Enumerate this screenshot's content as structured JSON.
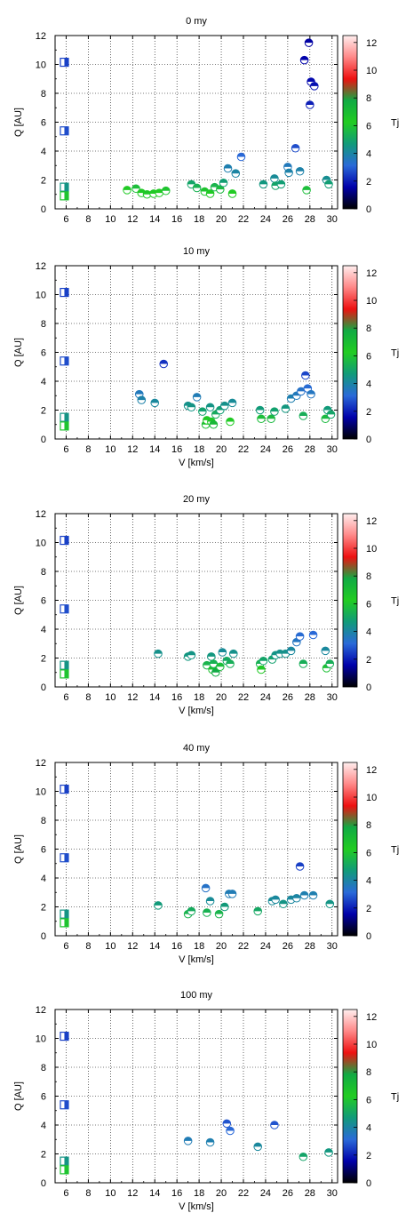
{
  "colors": {
    "colorbar_stops": [
      "#000000",
      "#0000aa",
      "#2a6ad8",
      "#119a7a",
      "#22cc22",
      "#11aa44",
      "#ee1111",
      "#ff8888",
      "#ffeeee"
    ],
    "text": "#000000",
    "grid": "#000000"
  },
  "chart_data": [
    {
      "type": "scatter",
      "title": "0 my",
      "xlabel": "",
      "ylabel": "Q [AU]",
      "colorbar_label": "Tj",
      "xlim": [
        5,
        30.5
      ],
      "ylim": [
        0,
        12
      ],
      "xticks": [
        "6",
        "8",
        "10",
        "12",
        "14",
        "16",
        "18",
        "20",
        "22",
        "24",
        "26",
        "28",
        "30"
      ],
      "yticks": [
        "0",
        "2",
        "4",
        "6",
        "8",
        "10",
        "12"
      ],
      "cticks": [
        "0",
        "2",
        "4",
        "6",
        "8",
        "10",
        "12"
      ],
      "clim": [
        0,
        12.5
      ],
      "grid": true,
      "reference_boxes": [
        {
          "x": 6,
          "y": 10.15,
          "tj": 2.5
        },
        {
          "x": 6,
          "y": 5.4,
          "tj": 2.7
        },
        {
          "x": 6,
          "y": 1.5,
          "tj": 4.5
        },
        {
          "x": 6,
          "y": 0.9,
          "tj": 6.0
        }
      ],
      "points": [
        {
          "x": 11.5,
          "y": 1.3,
          "tj": 6.2
        },
        {
          "x": 12.3,
          "y": 1.4,
          "tj": 5.8
        },
        {
          "x": 12.8,
          "y": 1.1,
          "tj": 6.4
        },
        {
          "x": 13.3,
          "y": 1.0,
          "tj": 6.5
        },
        {
          "x": 13.9,
          "y": 1.05,
          "tj": 6.4
        },
        {
          "x": 14.4,
          "y": 1.1,
          "tj": 6.3
        },
        {
          "x": 15.0,
          "y": 1.25,
          "tj": 6.0
        },
        {
          "x": 17.3,
          "y": 1.7,
          "tj": 5.0
        },
        {
          "x": 17.8,
          "y": 1.45,
          "tj": 5.4
        },
        {
          "x": 18.5,
          "y": 1.2,
          "tj": 6.0
        },
        {
          "x": 19.0,
          "y": 1.05,
          "tj": 6.4
        },
        {
          "x": 19.4,
          "y": 1.5,
          "tj": 5.5
        },
        {
          "x": 19.9,
          "y": 1.35,
          "tj": 5.7
        },
        {
          "x": 20.2,
          "y": 1.8,
          "tj": 4.8
        },
        {
          "x": 20.6,
          "y": 2.8,
          "tj": 3.8
        },
        {
          "x": 21.0,
          "y": 1.05,
          "tj": 6.3
        },
        {
          "x": 21.3,
          "y": 2.45,
          "tj": 4.0
        },
        {
          "x": 21.8,
          "y": 3.6,
          "tj": 3.1
        },
        {
          "x": 23.8,
          "y": 1.7,
          "tj": 4.6
        },
        {
          "x": 24.8,
          "y": 2.1,
          "tj": 4.2
        },
        {
          "x": 24.9,
          "y": 1.6,
          "tj": 5.0
        },
        {
          "x": 25.4,
          "y": 1.7,
          "tj": 4.8
        },
        {
          "x": 26.0,
          "y": 2.9,
          "tj": 3.6
        },
        {
          "x": 26.1,
          "y": 2.5,
          "tj": 3.9
        },
        {
          "x": 26.7,
          "y": 4.2,
          "tj": 2.7
        },
        {
          "x": 27.1,
          "y": 2.6,
          "tj": 3.9
        },
        {
          "x": 27.5,
          "y": 10.3,
          "tj": 1.6
        },
        {
          "x": 27.7,
          "y": 1.3,
          "tj": 5.8
        },
        {
          "x": 27.9,
          "y": 11.5,
          "tj": 1.5
        },
        {
          "x": 28.0,
          "y": 7.2,
          "tj": 2.0
        },
        {
          "x": 28.1,
          "y": 8.8,
          "tj": 1.7
        },
        {
          "x": 28.4,
          "y": 8.5,
          "tj": 1.8
        },
        {
          "x": 29.5,
          "y": 2.0,
          "tj": 4.3
        },
        {
          "x": 29.7,
          "y": 1.7,
          "tj": 4.8
        }
      ]
    },
    {
      "type": "scatter",
      "title": "10 my",
      "xlabel": "V [km/s]",
      "ylabel": "Q [AU]",
      "colorbar_label": "Tj",
      "xlim": [
        5,
        30.5
      ],
      "ylim": [
        0,
        12
      ],
      "xticks": [
        "6",
        "8",
        "10",
        "12",
        "14",
        "16",
        "18",
        "20",
        "22",
        "24",
        "26",
        "28",
        "30"
      ],
      "yticks": [
        "0",
        "2",
        "4",
        "6",
        "8",
        "10",
        "12"
      ],
      "cticks": [
        "0",
        "2",
        "4",
        "6",
        "8",
        "10",
        "12"
      ],
      "clim": [
        0,
        12.5
      ],
      "grid": true,
      "reference_boxes": [
        {
          "x": 6,
          "y": 10.15,
          "tj": 2.5
        },
        {
          "x": 6,
          "y": 5.4,
          "tj": 2.7
        },
        {
          "x": 6,
          "y": 1.5,
          "tj": 4.5
        },
        {
          "x": 6,
          "y": 0.9,
          "tj": 6.0
        }
      ],
      "points": [
        {
          "x": 12.6,
          "y": 3.1,
          "tj": 3.6
        },
        {
          "x": 12.8,
          "y": 2.7,
          "tj": 3.9
        },
        {
          "x": 14.0,
          "y": 2.5,
          "tj": 4.1
        },
        {
          "x": 14.8,
          "y": 5.2,
          "tj": 2.3
        },
        {
          "x": 17.0,
          "y": 2.3,
          "tj": 4.4
        },
        {
          "x": 17.3,
          "y": 2.2,
          "tj": 4.5
        },
        {
          "x": 17.8,
          "y": 2.9,
          "tj": 3.7
        },
        {
          "x": 18.3,
          "y": 1.9,
          "tj": 4.9
        },
        {
          "x": 18.6,
          "y": 1.0,
          "tj": 7.0
        },
        {
          "x": 18.7,
          "y": 1.3,
          "tj": 6.2
        },
        {
          "x": 19.0,
          "y": 2.2,
          "tj": 4.5
        },
        {
          "x": 19.1,
          "y": 1.2,
          "tj": 6.5
        },
        {
          "x": 19.3,
          "y": 1.0,
          "tj": 7.2
        },
        {
          "x": 19.5,
          "y": 1.7,
          "tj": 5.2
        },
        {
          "x": 19.9,
          "y": 2.0,
          "tj": 4.8
        },
        {
          "x": 20.3,
          "y": 2.3,
          "tj": 4.4
        },
        {
          "x": 20.8,
          "y": 1.2,
          "tj": 6.2
        },
        {
          "x": 21.0,
          "y": 2.5,
          "tj": 4.2
        },
        {
          "x": 23.5,
          "y": 2.0,
          "tj": 4.7
        },
        {
          "x": 23.6,
          "y": 1.4,
          "tj": 5.8
        },
        {
          "x": 24.5,
          "y": 1.4,
          "tj": 5.7
        },
        {
          "x": 24.8,
          "y": 1.9,
          "tj": 4.9
        },
        {
          "x": 25.8,
          "y": 2.1,
          "tj": 4.6
        },
        {
          "x": 26.3,
          "y": 2.8,
          "tj": 3.8
        },
        {
          "x": 26.8,
          "y": 3.0,
          "tj": 3.6
        },
        {
          "x": 27.2,
          "y": 3.3,
          "tj": 3.4
        },
        {
          "x": 27.4,
          "y": 1.6,
          "tj": 5.3
        },
        {
          "x": 27.6,
          "y": 4.4,
          "tj": 2.6
        },
        {
          "x": 27.8,
          "y": 3.5,
          "tj": 3.2
        },
        {
          "x": 28.1,
          "y": 3.1,
          "tj": 3.5
        },
        {
          "x": 29.4,
          "y": 1.4,
          "tj": 5.7
        },
        {
          "x": 29.6,
          "y": 2.0,
          "tj": 4.7
        },
        {
          "x": 29.9,
          "y": 1.7,
          "tj": 5.0
        }
      ]
    },
    {
      "type": "scatter",
      "title": "20 my",
      "xlabel": "V [km/s]",
      "ylabel": "Q [AU]",
      "colorbar_label": "Tj",
      "xlim": [
        5,
        30.5
      ],
      "ylim": [
        0,
        12
      ],
      "xticks": [
        "6",
        "8",
        "10",
        "12",
        "14",
        "16",
        "18",
        "20",
        "22",
        "24",
        "26",
        "28",
        "30"
      ],
      "yticks": [
        "0",
        "2",
        "4",
        "6",
        "8",
        "10",
        "12"
      ],
      "cticks": [
        "0",
        "2",
        "4",
        "6",
        "8",
        "10",
        "12"
      ],
      "clim": [
        0,
        12.5
      ],
      "grid": true,
      "reference_boxes": [
        {
          "x": 6,
          "y": 10.15,
          "tj": 2.5
        },
        {
          "x": 6,
          "y": 5.4,
          "tj": 2.7
        },
        {
          "x": 6,
          "y": 1.5,
          "tj": 4.5
        },
        {
          "x": 6,
          "y": 0.9,
          "tj": 6.0
        }
      ],
      "points": [
        {
          "x": 14.3,
          "y": 2.3,
          "tj": 4.4
        },
        {
          "x": 17.0,
          "y": 2.1,
          "tj": 4.6
        },
        {
          "x": 17.3,
          "y": 2.2,
          "tj": 4.5
        },
        {
          "x": 18.7,
          "y": 1.5,
          "tj": 5.5
        },
        {
          "x": 19.1,
          "y": 2.1,
          "tj": 4.6
        },
        {
          "x": 19.2,
          "y": 1.2,
          "tj": 6.8
        },
        {
          "x": 19.3,
          "y": 1.6,
          "tj": 5.4
        },
        {
          "x": 19.5,
          "y": 1.0,
          "tj": 7.8
        },
        {
          "x": 19.9,
          "y": 1.4,
          "tj": 5.8
        },
        {
          "x": 20.1,
          "y": 2.4,
          "tj": 4.2
        },
        {
          "x": 20.5,
          "y": 1.8,
          "tj": 5.1
        },
        {
          "x": 20.8,
          "y": 1.6,
          "tj": 5.3
        },
        {
          "x": 21.1,
          "y": 2.3,
          "tj": 4.4
        },
        {
          "x": 23.5,
          "y": 1.6,
          "tj": 5.4
        },
        {
          "x": 23.6,
          "y": 1.2,
          "tj": 6.2
        },
        {
          "x": 23.8,
          "y": 1.8,
          "tj": 5.0
        },
        {
          "x": 24.6,
          "y": 1.9,
          "tj": 4.9
        },
        {
          "x": 24.9,
          "y": 2.2,
          "tj": 4.5
        },
        {
          "x": 25.3,
          "y": 2.3,
          "tj": 4.4
        },
        {
          "x": 25.8,
          "y": 2.3,
          "tj": 4.4
        },
        {
          "x": 26.3,
          "y": 2.5,
          "tj": 4.1
        },
        {
          "x": 26.8,
          "y": 3.1,
          "tj": 3.5
        },
        {
          "x": 27.1,
          "y": 3.5,
          "tj": 3.2
        },
        {
          "x": 27.4,
          "y": 1.6,
          "tj": 5.3
        },
        {
          "x": 28.3,
          "y": 3.6,
          "tj": 3.1
        },
        {
          "x": 29.4,
          "y": 2.5,
          "tj": 4.1
        },
        {
          "x": 29.5,
          "y": 1.3,
          "tj": 5.9
        },
        {
          "x": 29.8,
          "y": 1.6,
          "tj": 5.3
        }
      ]
    },
    {
      "type": "scatter",
      "title": "40 my",
      "xlabel": "V [km/s]",
      "ylabel": "Q [AU]",
      "colorbar_label": "Tj",
      "xlim": [
        5,
        30.5
      ],
      "ylim": [
        0,
        12
      ],
      "xticks": [
        "6",
        "8",
        "10",
        "12",
        "14",
        "16",
        "18",
        "20",
        "22",
        "24",
        "26",
        "28",
        "30"
      ],
      "yticks": [
        "0",
        "2",
        "4",
        "6",
        "8",
        "10",
        "12"
      ],
      "cticks": [
        "0",
        "2",
        "4",
        "6",
        "8",
        "10",
        "12"
      ],
      "clim": [
        0,
        12.5
      ],
      "grid": true,
      "reference_boxes": [
        {
          "x": 6,
          "y": 10.15,
          "tj": 2.5
        },
        {
          "x": 6,
          "y": 5.4,
          "tj": 2.7
        },
        {
          "x": 6,
          "y": 1.5,
          "tj": 4.5
        },
        {
          "x": 6,
          "y": 0.9,
          "tj": 6.0
        }
      ],
      "points": [
        {
          "x": 14.3,
          "y": 2.1,
          "tj": 4.7
        },
        {
          "x": 17.0,
          "y": 1.5,
          "tj": 5.5
        },
        {
          "x": 17.3,
          "y": 1.7,
          "tj": 5.2
        },
        {
          "x": 18.6,
          "y": 3.3,
          "tj": 3.4
        },
        {
          "x": 18.7,
          "y": 1.6,
          "tj": 5.4
        },
        {
          "x": 19.0,
          "y": 2.4,
          "tj": 4.2
        },
        {
          "x": 19.8,
          "y": 1.5,
          "tj": 5.5
        },
        {
          "x": 20.3,
          "y": 2.0,
          "tj": 4.7
        },
        {
          "x": 20.7,
          "y": 2.9,
          "tj": 3.7
        },
        {
          "x": 21.0,
          "y": 2.9,
          "tj": 3.7
        },
        {
          "x": 23.3,
          "y": 1.7,
          "tj": 5.1
        },
        {
          "x": 24.6,
          "y": 2.4,
          "tj": 4.2
        },
        {
          "x": 24.9,
          "y": 2.5,
          "tj": 4.1
        },
        {
          "x": 25.6,
          "y": 2.2,
          "tj": 4.5
        },
        {
          "x": 26.3,
          "y": 2.5,
          "tj": 4.1
        },
        {
          "x": 26.8,
          "y": 2.6,
          "tj": 4.0
        },
        {
          "x": 27.1,
          "y": 4.8,
          "tj": 2.5
        },
        {
          "x": 27.5,
          "y": 2.8,
          "tj": 3.8
        },
        {
          "x": 28.3,
          "y": 2.8,
          "tj": 3.8
        },
        {
          "x": 29.8,
          "y": 2.2,
          "tj": 4.5
        }
      ]
    },
    {
      "type": "scatter",
      "title": "100 my",
      "xlabel": "V [km/s]",
      "ylabel": "Q [AU]",
      "colorbar_label": "Tj",
      "xlim": [
        5,
        30.5
      ],
      "ylim": [
        0,
        12
      ],
      "xticks": [
        "6",
        "8",
        "10",
        "12",
        "14",
        "16",
        "18",
        "20",
        "22",
        "24",
        "26",
        "28",
        "30"
      ],
      "yticks": [
        "0",
        "2",
        "4",
        "6",
        "8",
        "10",
        "12"
      ],
      "cticks": [
        "0",
        "2",
        "4",
        "6",
        "8",
        "10",
        "12"
      ],
      "clim": [
        0,
        12.5
      ],
      "grid": true,
      "reference_boxes": [
        {
          "x": 6,
          "y": 10.15,
          "tj": 2.5
        },
        {
          "x": 6,
          "y": 5.4,
          "tj": 2.7
        },
        {
          "x": 6,
          "y": 1.5,
          "tj": 4.5
        },
        {
          "x": 6,
          "y": 0.9,
          "tj": 6.0
        }
      ],
      "points": [
        {
          "x": 17.0,
          "y": 2.9,
          "tj": 3.7
        },
        {
          "x": 19.0,
          "y": 2.8,
          "tj": 3.8
        },
        {
          "x": 20.5,
          "y": 4.1,
          "tj": 2.8
        },
        {
          "x": 20.8,
          "y": 3.6,
          "tj": 3.1
        },
        {
          "x": 23.3,
          "y": 2.5,
          "tj": 4.1
        },
        {
          "x": 24.8,
          "y": 4.0,
          "tj": 2.8
        },
        {
          "x": 27.4,
          "y": 1.8,
          "tj": 5.0
        },
        {
          "x": 29.7,
          "y": 2.1,
          "tj": 4.6
        }
      ]
    }
  ]
}
